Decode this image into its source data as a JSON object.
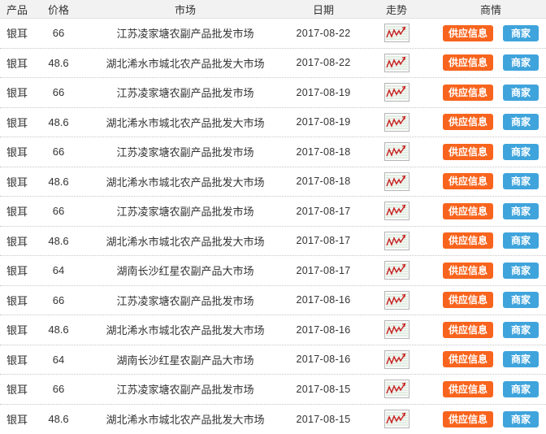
{
  "table": {
    "headers": [
      {
        "key": "product",
        "label": "产品"
      },
      {
        "key": "price",
        "label": "价格"
      },
      {
        "key": "market",
        "label": "市场"
      },
      {
        "key": "date",
        "label": "日期"
      },
      {
        "key": "trend",
        "label": "走势"
      },
      {
        "key": "business",
        "label": "商情"
      }
    ],
    "rows": [
      {
        "product": "银耳",
        "price": "66",
        "market": "江苏凌家塘农副产品批发市场",
        "date": "2017-08-22"
      },
      {
        "product": "银耳",
        "price": "48.6",
        "market": "湖北浠水市城北农产品批发大市场",
        "date": "2017-08-22"
      },
      {
        "product": "银耳",
        "price": "66",
        "market": "江苏凌家塘农副产品批发市场",
        "date": "2017-08-19"
      },
      {
        "product": "银耳",
        "price": "48.6",
        "market": "湖北浠水市城北农产品批发大市场",
        "date": "2017-08-19"
      },
      {
        "product": "银耳",
        "price": "66",
        "market": "江苏凌家塘农副产品批发市场",
        "date": "2017-08-18"
      },
      {
        "product": "银耳",
        "price": "48.6",
        "market": "湖北浠水市城北农产品批发大市场",
        "date": "2017-08-18"
      },
      {
        "product": "银耳",
        "price": "66",
        "market": "江苏凌家塘农副产品批发市场",
        "date": "2017-08-17"
      },
      {
        "product": "银耳",
        "price": "48.6",
        "market": "湖北浠水市城北农产品批发大市场",
        "date": "2017-08-17"
      },
      {
        "product": "银耳",
        "price": "64",
        "market": "湖南长沙红星农副产品大市场",
        "date": "2017-08-17"
      },
      {
        "product": "银耳",
        "price": "66",
        "market": "江苏凌家塘农副产品批发市场",
        "date": "2017-08-16"
      },
      {
        "product": "银耳",
        "price": "48.6",
        "market": "湖北浠水市城北农产品批发大市场",
        "date": "2017-08-16"
      },
      {
        "product": "银耳",
        "price": "64",
        "market": "湖南长沙红星农副产品大市场",
        "date": "2017-08-16"
      },
      {
        "product": "银耳",
        "price": "66",
        "market": "江苏凌家塘农副产品批发市场",
        "date": "2017-08-15"
      },
      {
        "product": "银耳",
        "price": "48.6",
        "market": "湖北浠水市城北农产品批发大市场",
        "date": "2017-08-15"
      }
    ]
  },
  "actions": {
    "supply_label": "供应信息",
    "merchant_label": "商家"
  },
  "icons": {
    "trend": "trend-chart-icon"
  },
  "colors": {
    "supply_button_bg": "#f8641d",
    "merchant_button_bg": "#3fa4dc",
    "trend_line": "#c81e1e",
    "header_bg": "#f2f2f2"
  }
}
